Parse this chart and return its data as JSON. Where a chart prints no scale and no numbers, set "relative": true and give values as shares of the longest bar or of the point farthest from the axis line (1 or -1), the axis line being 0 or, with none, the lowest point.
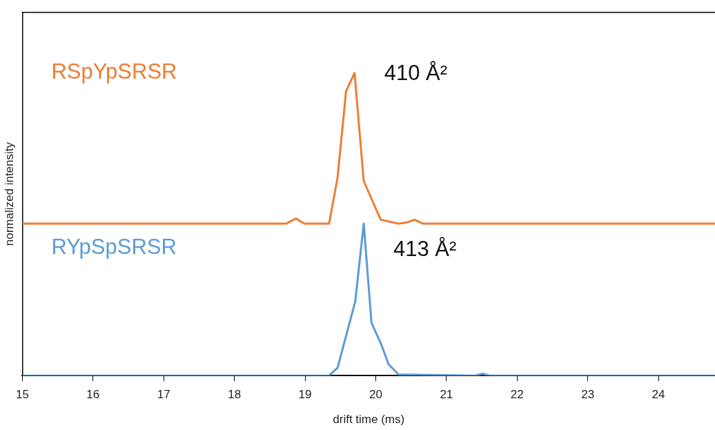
{
  "chart_data": {
    "type": "line",
    "relative": true,
    "xlabel": "drift time (ms)",
    "ylabel": "normalized intensity",
    "xlim": [
      15,
      24.8
    ],
    "xticks": [
      15,
      16,
      17,
      18,
      19,
      20,
      21,
      22,
      23,
      24
    ],
    "grid": false,
    "legend": false,
    "marker": "none",
    "line_style": "solid",
    "series": [
      {
        "name": "RSpYpSRSR",
        "color": "#ed7d31",
        "x": [
          15,
          18.73,
          18.87,
          18.99,
          19.34,
          19.46,
          19.58,
          19.7,
          19.83,
          20.07,
          20.32,
          20.44,
          20.55,
          20.67,
          24.8
        ],
        "values": [
          0.502,
          0.502,
          0.519,
          0.502,
          0.502,
          0.655,
          0.94,
          1,
          0.643,
          0.515,
          0.502,
          0.506,
          0.515,
          0.502,
          0.502
        ]
      },
      {
        "name": "RYpSpSRSR",
        "color": "#5b9bd5",
        "x": [
          15,
          19.34,
          19.46,
          19.71,
          19.83,
          19.94,
          20.08,
          20.18,
          20.32,
          21.4,
          21.51,
          21.62,
          24.8
        ],
        "values": [
          0,
          0,
          0.026,
          0.245,
          0.502,
          0.174,
          0.102,
          0.038,
          0.004,
          0,
          0.006,
          0,
          0
        ]
      }
    ],
    "annotations": [
      "410 Å²",
      "413 Å²"
    ]
  }
}
